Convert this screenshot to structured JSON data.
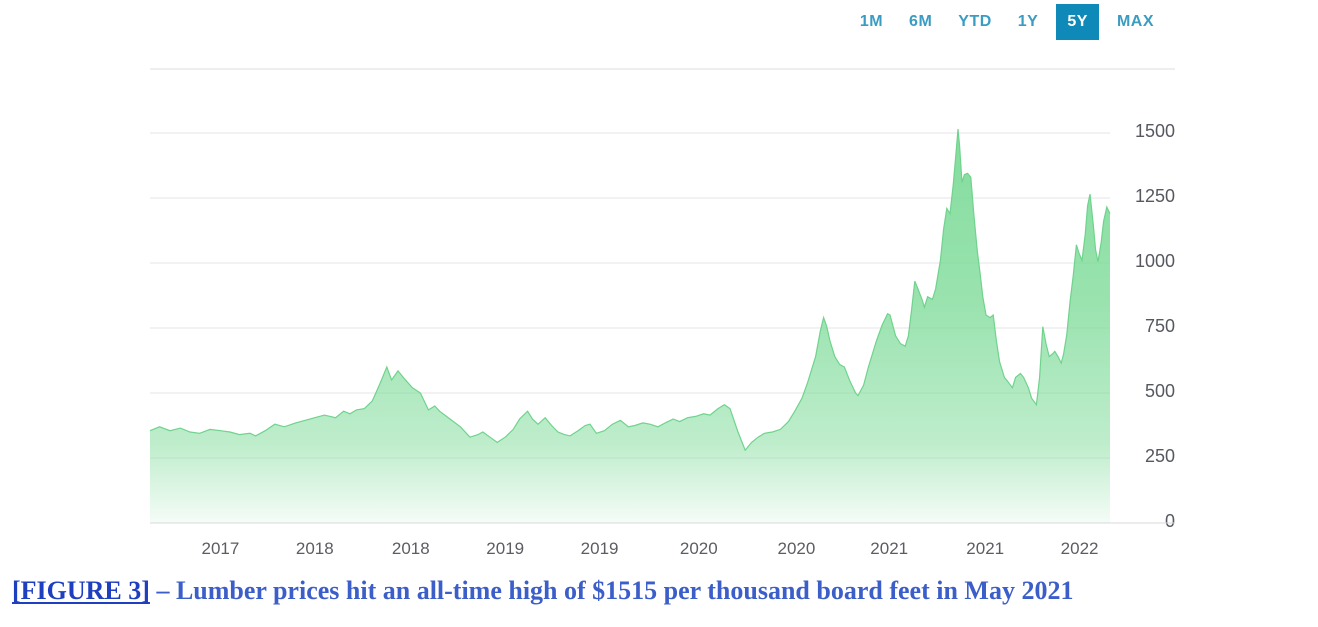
{
  "range_selector": {
    "options": [
      {
        "label": "1M",
        "active": false
      },
      {
        "label": "6M",
        "active": false
      },
      {
        "label": "YTD",
        "active": false
      },
      {
        "label": "1Y",
        "active": false
      },
      {
        "label": "5Y",
        "active": true
      },
      {
        "label": "MAX",
        "active": false
      }
    ],
    "active_bg": "#0f8ab8",
    "active_text_color": "#ffffff",
    "inactive_text_color": "#3b9cc2"
  },
  "chart_data": {
    "type": "area",
    "title": "",
    "series_name": "Lumber price (USD per thousand board feet)",
    "xlabel": "",
    "ylabel": "",
    "x_axis": {
      "unit": "months since start of 5Y window",
      "start_date": "2017-03",
      "end_date": "2022-03",
      "ticks": [
        {
          "t": 4.4,
          "label": "2017"
        },
        {
          "t": 10.3,
          "label": "2018"
        },
        {
          "t": 16.3,
          "label": "2018"
        },
        {
          "t": 22.2,
          "label": "2019"
        },
        {
          "t": 28.1,
          "label": "2019"
        },
        {
          "t": 34.3,
          "label": "2020"
        },
        {
          "t": 40.4,
          "label": "2020"
        },
        {
          "t": 46.2,
          "label": "2021"
        },
        {
          "t": 52.2,
          "label": "2021"
        },
        {
          "t": 58.1,
          "label": "2022"
        }
      ]
    },
    "y_axis": {
      "ticks": [
        0,
        250,
        500,
        750,
        1000,
        1250,
        1500
      ],
      "range": [
        0,
        1750
      ],
      "side": "right"
    },
    "grid": true,
    "legend": false,
    "all_time_high": {
      "value": 1515,
      "month": "May 2021",
      "t": 50.5
    },
    "colors": {
      "area_green": "#7edb99",
      "stroke_green": "#6fd38d",
      "gridline": "#e6e6e6",
      "axis_label": "#565860"
    },
    "points": [
      [
        0,
        355
      ],
      [
        0.6,
        370
      ],
      [
        1.25,
        355
      ],
      [
        1.9,
        365
      ],
      [
        2.5,
        350
      ],
      [
        3.1,
        345
      ],
      [
        3.75,
        360
      ],
      [
        4.4,
        355
      ],
      [
        5,
        350
      ],
      [
        5.6,
        340
      ],
      [
        6.25,
        345
      ],
      [
        6.6,
        335
      ],
      [
        7.2,
        355
      ],
      [
        7.8,
        380
      ],
      [
        8.4,
        370
      ],
      [
        9.1,
        385
      ],
      [
        9.7,
        395
      ],
      [
        10.3,
        405
      ],
      [
        10.9,
        415
      ],
      [
        11.6,
        405
      ],
      [
        12.1,
        430
      ],
      [
        12.5,
        420
      ],
      [
        12.9,
        435
      ],
      [
        13.4,
        440
      ],
      [
        13.9,
        470
      ],
      [
        14.4,
        540
      ],
      [
        14.8,
        600
      ],
      [
        15.1,
        550
      ],
      [
        15.5,
        585
      ],
      [
        15.9,
        555
      ],
      [
        16.4,
        520
      ],
      [
        16.9,
        500
      ],
      [
        17.4,
        435
      ],
      [
        17.8,
        450
      ],
      [
        18.1,
        430
      ],
      [
        18.75,
        400
      ],
      [
        19.4,
        370
      ],
      [
        20,
        330
      ],
      [
        20.5,
        340
      ],
      [
        20.8,
        350
      ],
      [
        21.25,
        330
      ],
      [
        21.7,
        310
      ],
      [
        22.2,
        330
      ],
      [
        22.7,
        360
      ],
      [
        23.1,
        400
      ],
      [
        23.6,
        430
      ],
      [
        23.9,
        400
      ],
      [
        24.25,
        380
      ],
      [
        24.7,
        405
      ],
      [
        25.1,
        375
      ],
      [
        25.5,
        350
      ],
      [
        25.9,
        340
      ],
      [
        26.25,
        335
      ],
      [
        26.75,
        355
      ],
      [
        27.2,
        375
      ],
      [
        27.5,
        380
      ],
      [
        27.9,
        345
      ],
      [
        28.4,
        355
      ],
      [
        28.9,
        380
      ],
      [
        29.4,
        395
      ],
      [
        29.9,
        370
      ],
      [
        30.3,
        375
      ],
      [
        30.8,
        385
      ],
      [
        31.25,
        380
      ],
      [
        31.75,
        370
      ],
      [
        32.2,
        385
      ],
      [
        32.7,
        400
      ],
      [
        33.1,
        390
      ],
      [
        33.6,
        405
      ],
      [
        34.1,
        410
      ],
      [
        34.6,
        420
      ],
      [
        35,
        415
      ],
      [
        35.5,
        440
      ],
      [
        35.9,
        455
      ],
      [
        36.25,
        440
      ],
      [
        36.75,
        350
      ],
      [
        37.2,
        280
      ],
      [
        37.6,
        310
      ],
      [
        38,
        330
      ],
      [
        38.4,
        345
      ],
      [
        38.9,
        350
      ],
      [
        39.4,
        360
      ],
      [
        39.9,
        390
      ],
      [
        40.3,
        430
      ],
      [
        40.75,
        480
      ],
      [
        41.1,
        540
      ],
      [
        41.6,
        640
      ],
      [
        41.9,
        740
      ],
      [
        42.1,
        790
      ],
      [
        42.3,
        755
      ],
      [
        42.5,
        700
      ],
      [
        42.8,
        640
      ],
      [
        43.1,
        610
      ],
      [
        43.4,
        600
      ],
      [
        43.75,
        545
      ],
      [
        44.1,
        500
      ],
      [
        44.25,
        490
      ],
      [
        44.6,
        530
      ],
      [
        44.9,
        600
      ],
      [
        45.1,
        640
      ],
      [
        45.4,
        700
      ],
      [
        45.75,
        760
      ],
      [
        46.1,
        805
      ],
      [
        46.25,
        800
      ],
      [
        46.6,
        720
      ],
      [
        46.9,
        690
      ],
      [
        47.2,
        680
      ],
      [
        47.4,
        720
      ],
      [
        47.6,
        820
      ],
      [
        47.8,
        930
      ],
      [
        48,
        900
      ],
      [
        48.25,
        860
      ],
      [
        48.4,
        830
      ],
      [
        48.6,
        870
      ],
      [
        48.9,
        860
      ],
      [
        49.1,
        900
      ],
      [
        49.4,
        1010
      ],
      [
        49.6,
        1130
      ],
      [
        49.8,
        1210
      ],
      [
        50,
        1190
      ],
      [
        50.2,
        1300
      ],
      [
        50.4,
        1440
      ],
      [
        50.5,
        1515
      ],
      [
        50.6,
        1450
      ],
      [
        50.75,
        1310
      ],
      [
        50.9,
        1340
      ],
      [
        51.1,
        1345
      ],
      [
        51.3,
        1330
      ],
      [
        51.5,
        1180
      ],
      [
        51.7,
        1050
      ],
      [
        51.9,
        950
      ],
      [
        52.05,
        870
      ],
      [
        52.25,
        800
      ],
      [
        52.5,
        790
      ],
      [
        52.7,
        800
      ],
      [
        52.9,
        700
      ],
      [
        53.1,
        620
      ],
      [
        53.4,
        560
      ],
      [
        53.6,
        545
      ],
      [
        53.9,
        520
      ],
      [
        54.1,
        560
      ],
      [
        54.4,
        575
      ],
      [
        54.6,
        560
      ],
      [
        54.9,
        520
      ],
      [
        55.1,
        480
      ],
      [
        55.4,
        455
      ],
      [
        55.6,
        560
      ],
      [
        55.8,
        755
      ],
      [
        56,
        690
      ],
      [
        56.2,
        640
      ],
      [
        56.4,
        650
      ],
      [
        56.55,
        660
      ],
      [
        56.75,
        640
      ],
      [
        56.95,
        615
      ],
      [
        57.1,
        650
      ],
      [
        57.3,
        725
      ],
      [
        57.5,
        850
      ],
      [
        57.7,
        950
      ],
      [
        57.9,
        1070
      ],
      [
        58.05,
        1040
      ],
      [
        58.25,
        1010
      ],
      [
        58.45,
        1110
      ],
      [
        58.6,
        1220
      ],
      [
        58.75,
        1265
      ],
      [
        58.95,
        1150
      ],
      [
        59.1,
        1050
      ],
      [
        59.25,
        1005
      ],
      [
        59.45,
        1080
      ],
      [
        59.6,
        1160
      ],
      [
        59.8,
        1215
      ],
      [
        60,
        1190
      ]
    ]
  },
  "caption": {
    "link_text": "[FIGURE 3]",
    "text": " – Lumber prices hit an all-time high of $1515 per thousand board feet in May 2021",
    "link_color": "#1e3fc0",
    "text_color": "#3c5ec9"
  }
}
